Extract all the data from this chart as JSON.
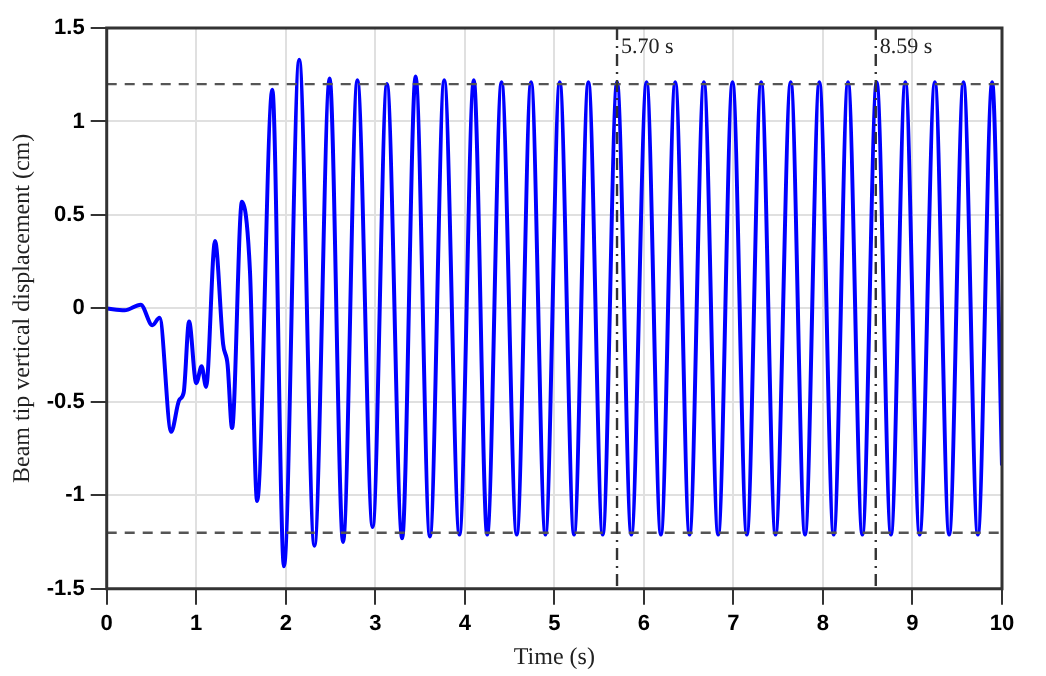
{
  "chart_data": {
    "type": "line",
    "xlabel": "Time (s)",
    "ylabel": "Beam tip vertical displacement (cm)",
    "x": [
      0,
      0.2,
      0.38,
      0.51,
      0.59,
      0.72,
      0.81,
      0.86,
      0.92,
      1.0,
      1.06,
      1.11,
      1.21,
      1.3,
      1.35,
      1.4,
      1.51,
      1.6,
      1.68,
      1.85,
      1.98,
      2.15,
      2.32,
      2.49,
      2.64,
      2.8,
      2.97,
      3.13,
      3.3,
      3.45,
      3.61,
      3.77,
      3.94,
      4.1,
      4.25,
      4.41,
      4.58,
      4.74,
      4.9,
      5.06,
      5.22,
      5.38,
      5.54,
      5.7,
      5.86,
      6.03,
      6.19,
      6.35,
      6.51,
      6.67,
      6.83,
      6.99,
      7.15,
      7.31,
      7.47,
      7.64,
      7.8,
      7.96,
      8.12,
      8.28,
      8.44,
      8.6,
      8.76,
      8.92,
      9.08,
      9.25,
      9.41,
      9.57,
      9.73,
      9.89,
      10
    ],
    "series": [
      {
        "color": "#0000ff",
        "values": [
          0,
          -0.01,
          0.02,
          -0.09,
          -0.05,
          -0.66,
          -0.49,
          -0.45,
          -0.07,
          -0.4,
          -0.31,
          -0.42,
          0.36,
          -0.19,
          -0.3,
          -0.64,
          0.57,
          0.2,
          -1.03,
          1.17,
          -1.38,
          1.33,
          -1.27,
          1.23,
          -1.25,
          1.22,
          -1.17,
          1.2,
          -1.23,
          1.24,
          -1.22,
          1.22,
          -1.21,
          1.22,
          -1.21,
          1.21,
          -1.21,
          1.21,
          -1.21,
          1.21,
          -1.21,
          1.21,
          -1.21,
          1.21,
          -1.21,
          1.21,
          -1.21,
          1.21,
          -1.21,
          1.21,
          -1.21,
          1.21,
          -1.21,
          1.21,
          -1.21,
          1.21,
          -1.21,
          1.21,
          -1.21,
          1.21,
          -1.21,
          1.21,
          -1.21,
          1.21,
          -1.21,
          1.21,
          -1.21,
          1.21,
          -1.21,
          1.21,
          -0.84
        ]
      }
    ],
    "xlim": [
      0,
      10
    ],
    "xticks": [
      0,
      1,
      2,
      3,
      4,
      5,
      6,
      7,
      8,
      9,
      10
    ],
    "ylim": [
      -1.5,
      1.5
    ],
    "yticks": [
      -1.5,
      -1,
      -0.5,
      0,
      0.5,
      1,
      1.5
    ],
    "grid": true,
    "legend": false,
    "marker": "none",
    "line_style": "solid",
    "ref_lines": [
      {
        "axis": "y",
        "value": 1.2,
        "color": "#555555",
        "line_style": "dashed"
      },
      {
        "axis": "y",
        "value": -1.2,
        "color": "#555555",
        "line_style": "dashed"
      },
      {
        "axis": "x",
        "value": 5.7,
        "label": "5.70 s",
        "color": "#333333",
        "line_style": "dashdot"
      },
      {
        "axis": "x",
        "value": 8.59,
        "label": "8.59 s",
        "color": "#333333",
        "line_style": "dashdot"
      }
    ]
  }
}
